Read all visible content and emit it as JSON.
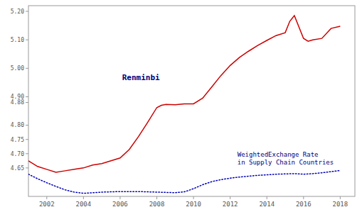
{
  "chart_data": {
    "type": "line",
    "xlim": [
      2001.0,
      2018.8
    ],
    "ylim": [
      4.55,
      5.22
    ],
    "xticks": [
      2002,
      2004,
      2006,
      2008,
      2010,
      2012,
      2014,
      2016,
      2018
    ],
    "yticks": [
      4.65,
      {
        "value": 4.7,
        "label": "4.70"
      },
      4.75,
      {
        "value": 4.8,
        "label": "4.80"
      },
      4.88,
      {
        "value": 4.9,
        "label": "4.90"
      },
      {
        "value": 5.0,
        "label": "5.00"
      },
      {
        "value": 5.1,
        "label": "5.10"
      },
      {
        "value": 5.2,
        "label": "5.20"
      }
    ],
    "grid": false,
    "annotations": [
      "Renminbi",
      "WeightedExchange Rate",
      "in Supply Chain Countries"
    ],
    "series": [
      {
        "color": "#cc0000",
        "line_style": "solid",
        "x": [
          2001,
          2001.5,
          2002,
          2002.5,
          2003,
          2003.5,
          2004,
          2004.5,
          2005,
          2005.5,
          2006,
          2006.5,
          2007,
          2007.5,
          2008,
          2008.25,
          2008.5,
          2009,
          2009.5,
          2010,
          2010.5,
          2011,
          2011.5,
          2012,
          2012.5,
          2013,
          2013.5,
          2014,
          2014.5,
          2015,
          2015.25,
          2015.5,
          2016,
          2016.25,
          2016.5,
          2017,
          2017.5,
          2018
        ],
        "values": [
          4.675,
          4.655,
          4.645,
          4.635,
          4.64,
          4.645,
          4.65,
          4.66,
          4.665,
          4.675,
          4.685,
          4.715,
          4.76,
          4.81,
          4.862,
          4.87,
          4.873,
          4.872,
          4.875,
          4.875,
          4.895,
          4.935,
          4.975,
          5.01,
          5.038,
          5.06,
          5.08,
          5.098,
          5.115,
          5.125,
          5.165,
          5.185,
          5.105,
          5.095,
          5.1,
          5.105,
          5.14,
          5.148
        ]
      },
      {
        "color": "#0000bb",
        "line_style": "dotted",
        "x": [
          2001,
          2001.5,
          2002,
          2002.5,
          2003,
          2003.5,
          2004,
          2004.5,
          2005,
          2005.5,
          2006,
          2006.5,
          2007,
          2007.5,
          2008,
          2008.5,
          2009,
          2009.5,
          2010,
          2010.5,
          2011,
          2011.5,
          2012,
          2012.5,
          2013,
          2013.5,
          2014,
          2014.5,
          2015,
          2015.5,
          2016,
          2016.5,
          2017,
          2017.5,
          2018
        ],
        "values": [
          4.628,
          4.612,
          4.598,
          4.585,
          4.573,
          4.565,
          4.561,
          4.563,
          4.565,
          4.566,
          4.567,
          4.567,
          4.567,
          4.566,
          4.565,
          4.564,
          4.563,
          4.566,
          4.577,
          4.591,
          4.602,
          4.609,
          4.614,
          4.618,
          4.621,
          4.624,
          4.626,
          4.628,
          4.629,
          4.63,
          4.628,
          4.63,
          4.633,
          4.637,
          4.641
        ]
      }
    ]
  }
}
